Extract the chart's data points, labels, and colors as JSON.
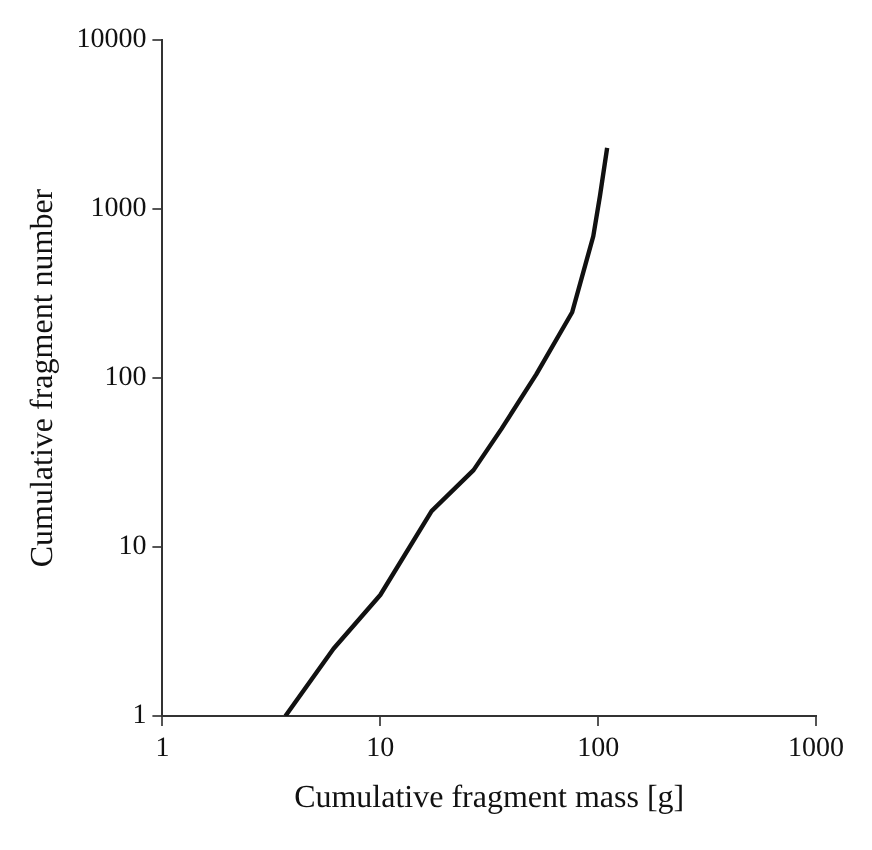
{
  "chart_data": {
    "type": "line",
    "xlabel": "Cumulative fragment mass [g]",
    "ylabel": "Cumulative fragment number",
    "series": [
      {
        "color": "#111111",
        "x": [
          3.67,
          6.1,
          10,
          17.2,
          26.8,
          36,
          52,
          76,
          95,
          102,
          110
        ],
        "values": [
          1,
          2.5,
          5.2,
          16.3,
          28.5,
          50,
          105,
          245,
          690,
          1200,
          2300
        ]
      }
    ],
    "log": "xy",
    "xlim": [
      1,
      1000
    ],
    "ylim": [
      1,
      10000
    ],
    "xticks": [
      1,
      10,
      100,
      1000
    ],
    "yticks": [
      1,
      10,
      100,
      1000,
      10000
    ],
    "grid": false,
    "legend": false,
    "marker": "none",
    "line_style": "solid"
  }
}
